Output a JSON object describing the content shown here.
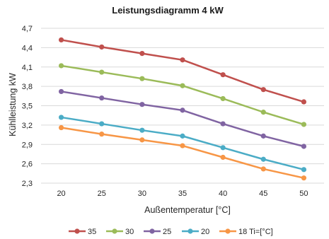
{
  "chart_data": {
    "type": "line",
    "title": "Leistungsdiagramm 4 kW",
    "xlabel": "Außentemperatur [°C]",
    "ylabel": "Kühlleistung kW",
    "x": [
      20,
      25,
      30,
      35,
      40,
      45,
      50
    ],
    "x_tick_labels": [
      "20",
      "25",
      "30",
      "35",
      "40",
      "45",
      "50"
    ],
    "ylim": [
      2.3,
      4.7
    ],
    "y_ticks": [
      2.3,
      2.6,
      2.9,
      3.2,
      3.5,
      3.8,
      4.1,
      4.4,
      4.7
    ],
    "y_tick_labels": [
      "2,3",
      "2,6",
      "2,9",
      "3,2",
      "3,5",
      "3,8",
      "4,1",
      "4,4",
      "4,7"
    ],
    "grid": "horizontal",
    "legend_position": "bottom",
    "series": [
      {
        "name": "35",
        "color": "#c0504d",
        "values": [
          4.52,
          4.41,
          4.31,
          4.21,
          3.98,
          3.75,
          3.56
        ]
      },
      {
        "name": "30",
        "color": "#9bbb59",
        "values": [
          4.12,
          4.02,
          3.92,
          3.81,
          3.61,
          3.4,
          3.21
        ]
      },
      {
        "name": "25",
        "color": "#8064a2",
        "values": [
          3.72,
          3.62,
          3.52,
          3.43,
          3.22,
          3.03,
          2.87
        ]
      },
      {
        "name": "20",
        "color": "#4bacc6",
        "values": [
          3.32,
          3.22,
          3.12,
          3.03,
          2.85,
          2.67,
          2.51
        ]
      },
      {
        "name": "18 Ti=[°C]",
        "color": "#f79646",
        "values": [
          3.16,
          3.06,
          2.97,
          2.88,
          2.7,
          2.52,
          2.38
        ]
      }
    ]
  }
}
